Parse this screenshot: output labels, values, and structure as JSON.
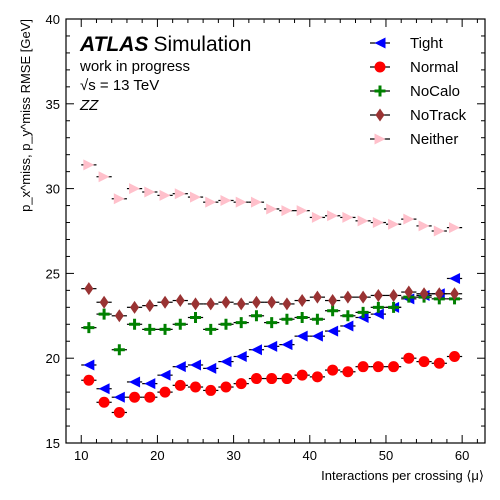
{
  "chart_data": {
    "type": "scatter",
    "title": "",
    "xlabel": "Interactions per crossing ⟨μ⟩",
    "ylabel": "p_x^miss, p_y^miss RMSE [GeV]",
    "xlim": [
      8,
      63
    ],
    "ylim": [
      15,
      40
    ],
    "xticks": [
      10,
      20,
      30,
      40,
      50,
      60
    ],
    "yticks": [
      15,
      20,
      25,
      30,
      35,
      40
    ],
    "grid": false,
    "legend_position": "top-right",
    "annotations": {
      "atlas_bold": "ATLAS",
      "atlas_rest": "Simulation",
      "line1": "work in progress",
      "line2": "√s = 13 TeV",
      "line3": "ZZ"
    },
    "x": [
      11,
      13,
      15,
      17,
      19,
      21,
      23,
      25,
      27,
      29,
      31,
      33,
      35,
      37,
      39,
      41,
      43,
      45,
      47,
      49,
      51,
      53,
      55,
      57,
      59
    ],
    "series": [
      {
        "name": "Tight",
        "marker": "triangle-left",
        "color": "#0000ff",
        "values": [
          19.6,
          18.2,
          17.7,
          18.6,
          18.5,
          19.0,
          19.5,
          19.6,
          19.4,
          19.8,
          20.1,
          20.5,
          20.7,
          20.8,
          21.3,
          21.3,
          21.6,
          21.9,
          22.4,
          22.6,
          23.0,
          23.5,
          23.7,
          23.8,
          24.7
        ]
      },
      {
        "name": "Normal",
        "marker": "circle",
        "color": "#ff0000",
        "values": [
          18.7,
          17.4,
          16.8,
          17.7,
          17.7,
          18.0,
          18.4,
          18.3,
          18.1,
          18.3,
          18.5,
          18.8,
          18.8,
          18.8,
          19.0,
          18.9,
          19.3,
          19.2,
          19.5,
          19.5,
          19.5,
          20.0,
          19.8,
          19.7,
          20.1
        ]
      },
      {
        "name": "NoCalo",
        "marker": "plus",
        "color": "#008000",
        "values": [
          21.8,
          22.6,
          20.5,
          22.0,
          21.7,
          21.7,
          22.0,
          22.4,
          21.7,
          22.0,
          22.1,
          22.5,
          22.1,
          22.3,
          22.4,
          22.3,
          22.8,
          22.5,
          22.7,
          23.0,
          23.0,
          23.6,
          23.6,
          23.5,
          23.5
        ]
      },
      {
        "name": "NoTrack",
        "marker": "diamond",
        "color": "#993333",
        "values": [
          24.1,
          23.3,
          22.5,
          23.0,
          23.1,
          23.3,
          23.4,
          23.2,
          23.2,
          23.3,
          23.2,
          23.3,
          23.3,
          23.2,
          23.4,
          23.6,
          23.4,
          23.6,
          23.6,
          23.7,
          23.7,
          23.9,
          23.8,
          23.8,
          23.8
        ]
      },
      {
        "name": "Neither",
        "marker": "triangle-right",
        "color": "#ffc0cb",
        "values": [
          31.4,
          30.7,
          29.4,
          30.0,
          29.8,
          29.6,
          29.7,
          29.5,
          29.2,
          29.3,
          29.2,
          29.2,
          28.8,
          28.7,
          28.7,
          28.3,
          28.4,
          28.3,
          28.1,
          28.0,
          27.9,
          28.2,
          27.8,
          27.5,
          27.7
        ]
      }
    ]
  }
}
